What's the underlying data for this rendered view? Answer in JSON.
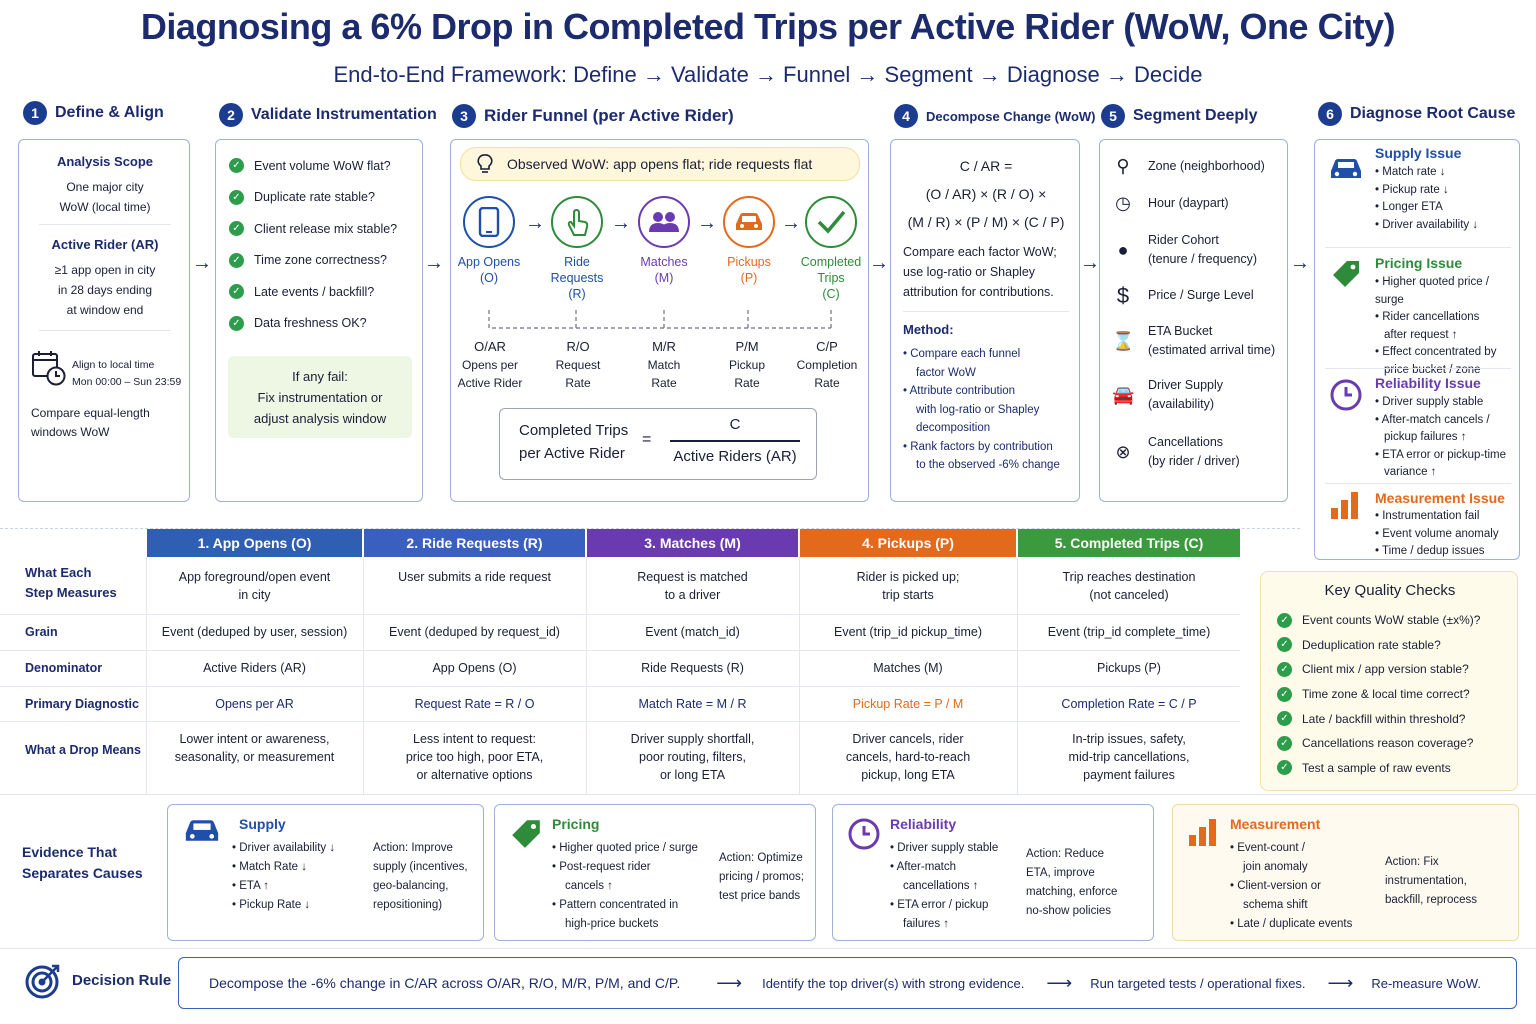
{
  "title": "Diagnosing a 6% Drop in Completed Trips per Active Rider (WoW, One City)",
  "subtitle": "End-to-End Framework: Define → Validate → Funnel → Segment → Diagnose → Decide",
  "sections": [
    {
      "num": "1",
      "label": "Define & Align"
    },
    {
      "num": "2",
      "label": "Validate Instrumentation"
    },
    {
      "num": "3",
      "label": "Rider Funnel (per Active Rider)"
    },
    {
      "num": "4",
      "label": "Decompose Change (WoW)"
    },
    {
      "num": "5",
      "label": "Segment Deeply"
    },
    {
      "num": "6",
      "label": "Diagnose Root Cause"
    }
  ],
  "define": {
    "scope_title": "Analysis Scope",
    "scope_l1": "One major city",
    "scope_l2": "WoW (local time)",
    "ar_title": "Active Rider (AR)",
    "ar_l1": "≥1 app open in city",
    "ar_l2": "in 28 days ending",
    "ar_l3": "at window end",
    "align_l1": "Align to local time",
    "align_l2": "Mon 00:00 – Sun 23:59",
    "compare_l1": "Compare equal-length",
    "compare_l2": "windows WoW"
  },
  "validate": {
    "checks": [
      "Event volume WoW flat?",
      "Duplicate rate stable?",
      "Client release mix stable?",
      "Time zone correctness?",
      "Late events / backfill?",
      "Data freshness OK?"
    ],
    "fail_title": "If any fail:",
    "fail_l1": "Fix instrumentation or",
    "fail_l2": "adjust analysis window"
  },
  "funnel": {
    "observed": "Observed WoW: app opens flat; ride requests flat",
    "steps": [
      {
        "l1": "App Opens",
        "l2": "(O)",
        "l3": "",
        "color": "#1f4fa8"
      },
      {
        "l1": "Ride",
        "l2": "Requests",
        "l3": "(R)",
        "color": "#1f4fa8"
      },
      {
        "l1": "Matches",
        "l2": "(M)",
        "l3": "",
        "color": "#6a3bb0"
      },
      {
        "l1": "Pickups",
        "l2": "(P)",
        "l3": "",
        "color": "#e36a1c"
      },
      {
        "l1": "Completed",
        "l2": "Trips",
        "l3": "(C)",
        "color": "#2e8b3a"
      }
    ],
    "ratios": [
      {
        "name": "O/AR",
        "l1": "Opens per",
        "l2": "Active Rider"
      },
      {
        "name": "R/O",
        "l1": "Request",
        "l2": "Rate"
      },
      {
        "name": "M/R",
        "l1": "Match",
        "l2": "Rate"
      },
      {
        "name": "P/M",
        "l1": "Pickup",
        "l2": "Rate"
      },
      {
        "name": "C/P",
        "l1": "Completion",
        "l2": "Rate"
      }
    ],
    "formula_l1": "Completed Trips",
    "formula_l2": "per Active Rider",
    "formula_eq": "=",
    "formula_num": "C",
    "formula_den": "Active Riders (AR)"
  },
  "decompose": {
    "f1": "C / AR =",
    "f2": "(O / AR) × (R / O) ×",
    "f3": "(M / R) × (P / M) × (C / P)",
    "desc_l1": "Compare each factor WoW;",
    "desc_l2": "use log-ratio or Shapley",
    "desc_l3": "attribution for contributions.",
    "method_title": "Method:",
    "m1_l1": "Compare each funnel",
    "m1_l2": "factor WoW",
    "m2_l1": "Attribute contribution",
    "m2_l2": "with log-ratio or Shapley",
    "m2_l3": "decomposition",
    "m3_l1": "Rank factors by contribution",
    "m3_l2": "to the observed -6% change"
  },
  "segments": [
    {
      "icon": "pin-icon",
      "l1": "Zone (neighborhood)",
      "l2": ""
    },
    {
      "icon": "clock-icon",
      "l1": "Hour (daypart)",
      "l2": ""
    },
    {
      "icon": "person-icon",
      "l1": "Rider Cohort",
      "l2": "(tenure / frequency)"
    },
    {
      "icon": "dollar-icon",
      "l1": "Price / Surge Level",
      "l2": ""
    },
    {
      "icon": "hourglass-icon",
      "l1": "ETA Bucket",
      "l2": "(estimated arrival time)"
    },
    {
      "icon": "car-icon",
      "l1": "Driver Supply",
      "l2": "(availability)"
    },
    {
      "icon": "x-circle-icon",
      "l1": "Cancellations",
      "l2": "(by rider / driver)"
    }
  ],
  "root_cause": {
    "supply": {
      "title": "Supply Issue",
      "items": [
        "Match rate ↓",
        "Pickup rate ↓",
        "Longer ETA",
        "Driver availability ↓"
      ],
      "color": "#1f4fa8"
    },
    "pricing": {
      "title": "Pricing Issue",
      "items": [
        "Higher quoted price / surge",
        "Rider cancellations",
        "after request ↑",
        "Effect concentrated by",
        "price bucket / zone"
      ],
      "color": "#2e8b3a"
    },
    "reliability": {
      "title": "Reliability Issue",
      "items": [
        "Driver supply stable",
        "After-match cancels /",
        "pickup failures ↑",
        "ETA error or pickup-time",
        "variance ↑"
      ],
      "color": "#6a3bb0"
    },
    "measurement": {
      "title": "Measurement Issue",
      "items": [
        "Instrumentation fail",
        "Event volume anomaly",
        "Time / dedup issues"
      ],
      "color": "#e36a1c"
    }
  },
  "table": {
    "headers": [
      {
        "label": "1. App Opens (O)",
        "color": "#2f5fb3"
      },
      {
        "label": "2. Ride Requests (R)",
        "color": "#3a5fbf"
      },
      {
        "label": "3. Matches (M)",
        "color": "#6a3bb0"
      },
      {
        "label": "4. Pickups (P)",
        "color": "#e36a1c"
      },
      {
        "label": "5. Completed Trips (C)",
        "color": "#3c9a3e"
      }
    ],
    "row_labels": {
      "measures_l1": "What Each",
      "measures_l2": "Step Measures",
      "grain": "Grain",
      "denominator": "Denominator",
      "diagnostic": "Primary Diagnostic",
      "drop": "What a Drop Means"
    },
    "measures": [
      [
        "App foreground/open event",
        "in city"
      ],
      [
        "User submits a ride request",
        ""
      ],
      [
        "Request is matched",
        "to a driver"
      ],
      [
        "Rider is picked up;",
        "trip starts"
      ],
      [
        "Trip reaches destination",
        "(not canceled)"
      ]
    ],
    "grain": [
      "Event (deduped by user, session)",
      "Event (deduped by request_id)",
      "Event (match_id)",
      "Event (trip_id pickup_time)",
      "Event (trip_id complete_time)"
    ],
    "denominator": [
      "Active Riders (AR)",
      "App Opens (O)",
      "Ride Requests (R)",
      "Matches (M)",
      "Pickups (P)"
    ],
    "diagnostic": [
      "Opens per AR",
      "Request Rate = R / O",
      "Match Rate = M / R",
      "Pickup Rate = P / M",
      "Completion Rate = C / P"
    ],
    "diagnostic_colors": [
      "#1c2b6e",
      "#1c2b6e",
      "#1c2b6e",
      "#e36a1c",
      "#1c2b6e"
    ],
    "drop": [
      [
        "Lower intent or awareness,",
        "seasonality, or measurement",
        ""
      ],
      [
        "Less intent to request:",
        "price too high, poor ETA,",
        "or alternative options"
      ],
      [
        "Driver supply shortfall,",
        "poor routing, filters,",
        "or long ETA"
      ],
      [
        "Driver cancels, rider",
        "cancels, hard-to-reach",
        "pickup, long ETA"
      ],
      [
        "In-trip issues, safety,",
        "mid-trip cancellations,",
        "payment failures"
      ]
    ]
  },
  "quality": {
    "title": "Key Quality Checks",
    "items": [
      "Event counts WoW stable (±x%)?",
      "Deduplication rate stable?",
      "Client mix / app version stable?",
      "Time zone & local time correct?",
      "Late / backfill within threshold?",
      "Cancellations reason coverage?",
      "Test a sample of raw events"
    ]
  },
  "evidence": {
    "label_l1": "Evidence That",
    "label_l2": "Separates Causes",
    "cards": [
      {
        "title": "Supply",
        "color": "#1f4fa8",
        "bg": "#ffffff",
        "bullets": [
          "Driver availability ↓",
          "Match Rate ↓",
          "ETA ↑",
          "Pickup Rate ↓"
        ],
        "action": [
          "Action: Improve",
          "supply (incentives,",
          "geo-balancing,",
          "repositioning)"
        ]
      },
      {
        "title": "Pricing",
        "color": "#2e8b3a",
        "bg": "#ffffff",
        "bullets": [
          "Higher quoted price / surge",
          "Post-request rider",
          "cancels ↑",
          "Pattern concentrated in",
          "high-price buckets"
        ],
        "action": [
          "Action: Optimize",
          "pricing / promos;",
          "test price bands"
        ]
      },
      {
        "title": "Reliability",
        "color": "#6a3bb0",
        "bg": "#ffffff",
        "bullets": [
          "Driver supply stable",
          "After-match",
          "cancellations ↑",
          "ETA error / pickup",
          "failures ↑"
        ],
        "action": [
          "Action: Reduce",
          "ETA, improve",
          "matching, enforce",
          "no-show policies"
        ]
      },
      {
        "title": "Measurement",
        "color": "#e36a1c",
        "bg": "#fffaf0",
        "bullets": [
          "Event-count /",
          "join anomaly",
          "Client-version or",
          "schema shift",
          "Late / duplicate events"
        ],
        "action": [
          "Action: Fix",
          "instrumentation,",
          "backfill, reprocess"
        ]
      }
    ]
  },
  "decision": {
    "label": "Decision Rule",
    "step1": "Decompose the -6% change in C/AR across O/AR, R/O, M/R, P/M, and C/P.",
    "step2": "Identify the top driver(s) with strong evidence.",
    "step3": "Run targeted tests / operational fixes.",
    "step4": "Re-measure WoW."
  }
}
